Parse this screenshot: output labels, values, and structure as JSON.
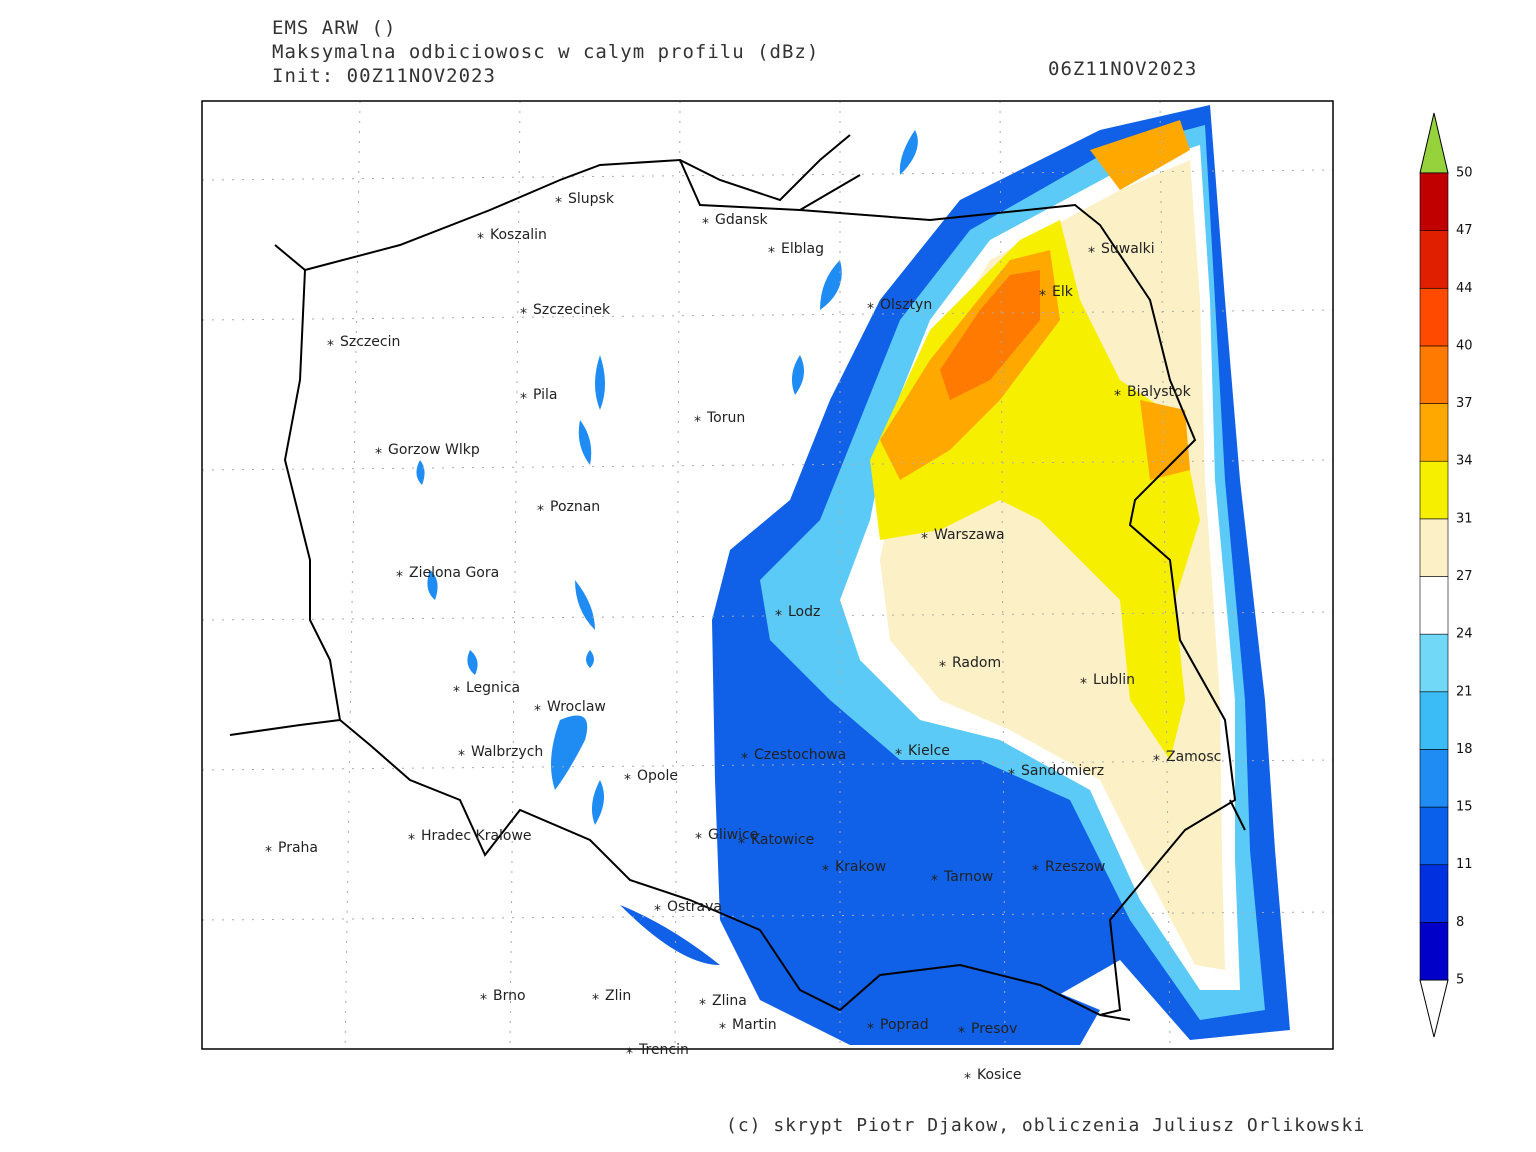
{
  "header": {
    "model": "EMS ARW ()",
    "field": "Maksymalna odbiciowosc w calym profilu (dBz)",
    "init": "Init: 00Z11NOV2023",
    "valid": "06Z11NOV2023"
  },
  "cities": [
    "Slupsk",
    "Koszalin",
    "Gdansk",
    "Elblag",
    "Szczecinek",
    "Szczecin",
    "Olsztyn",
    "Elk",
    "Suwalki",
    "Pila",
    "Torun",
    "Bialystok",
    "Gorzow Wlkp",
    "Poznan",
    "Warszawa",
    "Zielona Gora",
    "Lodz",
    "Radom",
    "Lublin",
    "Legnica",
    "Wroclaw",
    "Walbrzych",
    "Czestochowa",
    "Kielce",
    "Zamosc",
    "Opole",
    "Sandomierz",
    "Praha",
    "Hradec Kralowe",
    "Gliwice",
    "Katowice",
    "Krakow",
    "Rzeszow",
    "Tarnow",
    "Ostrava",
    "Brno",
    "Zlin",
    "Zlina",
    "Martin",
    "Poprad",
    "Presov",
    "Trencin",
    "Kosice"
  ],
  "colorbar": {
    "levels": [
      5,
      8,
      11,
      15,
      18,
      21,
      24,
      27,
      31,
      34,
      37,
      40,
      44,
      47,
      50
    ],
    "colors": [
      "#0000c8",
      "#0030e0",
      "#0a60ea",
      "#1e8cf2",
      "#3cbcf6",
      "#72d8f8",
      "#ffffff",
      "#fbf0c6",
      "#f6f000",
      "#ffa800",
      "#ff7a00",
      "#ff4a00",
      "#e01e00",
      "#c00000"
    ],
    "over_color": "#96d23c",
    "under_color": "#ffffff"
  },
  "credit": "(c) skrypt Piotr Djakow, obliczenia Juliusz Orlikowski"
}
